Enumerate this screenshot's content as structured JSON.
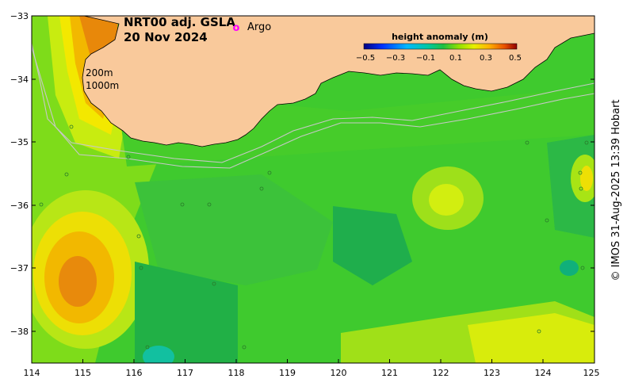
{
  "map": {
    "title_line1": "NRT00 adj. GSLA",
    "title_line2": "20 Nov 2024",
    "legend_marker": "o",
    "legend_label": "Argo",
    "depth_labels": [
      "200m",
      "1000m"
    ],
    "credit": "© IMOS 31-Aug-2025 13:39 Hobart",
    "colors": {
      "land": "#f9c99b",
      "argo": "#ff00ff",
      "isobath": "#c8c8c8"
    }
  },
  "colorbar": {
    "title": "height anomaly (m)",
    "tick_labels": [
      "−0.5",
      "−0.3",
      "−0.1",
      "0.1",
      "0.3",
      "0.5"
    ]
  },
  "axes": {
    "x_ticks": [
      "114",
      "115",
      "116",
      "117",
      "118",
      "119",
      "120",
      "121",
      "122",
      "123",
      "124",
      "125"
    ],
    "y_ticks": [
      "−33",
      "−34",
      "−35",
      "−36",
      "−37",
      "−38"
    ]
  }
}
